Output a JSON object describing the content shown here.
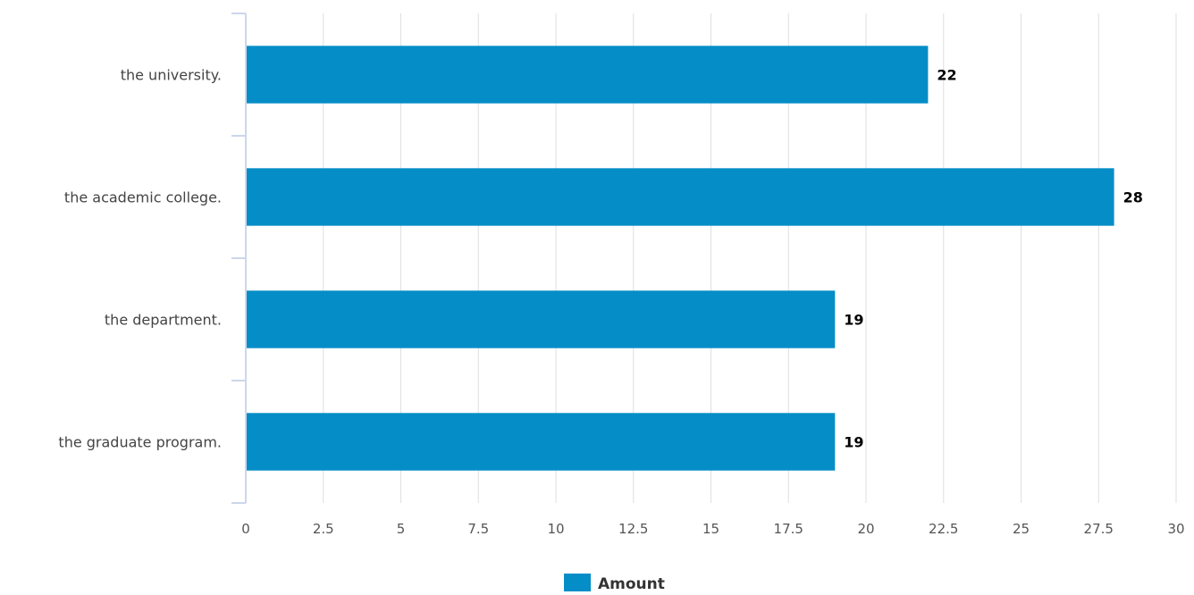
{
  "chart_data": {
    "type": "bar",
    "orientation": "horizontal",
    "categories": [
      "the university.",
      "the academic college.",
      "the department.",
      "the graduate program."
    ],
    "series": [
      {
        "name": "Amount",
        "values": [
          22,
          28,
          19,
          19
        ],
        "color": "#058dc7"
      }
    ],
    "xlim": [
      0,
      30
    ],
    "x_ticks": [
      "0",
      "2.5",
      "5",
      "7.5",
      "10",
      "12.5",
      "15",
      "17.5",
      "20",
      "22.5",
      "25",
      "27.5",
      "30"
    ],
    "grid": true,
    "data_labels": true,
    "legend_position": "bottom",
    "colors": {
      "bar": "#058dc7",
      "grid": "#dcdfe3",
      "axis": "#ccd6eb",
      "text": "#444444",
      "data_label": "#000000"
    }
  }
}
